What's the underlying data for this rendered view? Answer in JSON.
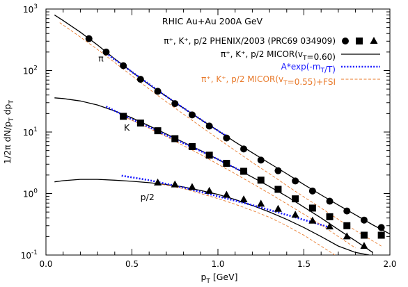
{
  "chart_data": {
    "type": "line",
    "title": "RHIC Au+Au 200A GeV",
    "xlabel": "p_T [GeV]",
    "ylabel": "1/2π dN/p_T dp_T",
    "xlim": [
      0,
      2.0
    ],
    "ylim": [
      0.1,
      1000
    ],
    "yscale": "log",
    "grid": false,
    "legend_placement": "top-right",
    "x_ticks": [
      "0.0",
      "0.5",
      "1.0",
      "1.5",
      "2.0"
    ],
    "y_ticks": [
      {
        "base": "10",
        "exp": "-1"
      },
      {
        "base": "10",
        "exp": "0"
      },
      {
        "base": "10",
        "exp": "1"
      },
      {
        "base": "10",
        "exp": "2"
      },
      {
        "base": "10",
        "exp": "3"
      }
    ],
    "annotations": [
      {
        "text": "π",
        "x": 0.32,
        "y": 140
      },
      {
        "text": "K",
        "x": 0.47,
        "y": 10.5
      },
      {
        "text": "p/2",
        "x": 0.59,
        "y": 0.78
      }
    ],
    "legend": [
      {
        "label": "π⁺, K⁺, p/2 PHENIX/2003 (PRC69 034909)",
        "color": "#000000",
        "style": "markers"
      },
      {
        "label": "π⁺, K⁺, p/2 MICOR(vT=0.60)",
        "color": "#000000",
        "style": "solid"
      },
      {
        "label": "A*exp(-mT/T)",
        "color": "#1a1aff",
        "style": "dotted"
      },
      {
        "label": "π⁺, K⁺, p/2 MICOR(vT=0.55)+FSI",
        "color": "#e8792a",
        "style": "dashed"
      }
    ],
    "series": [
      {
        "name": "π⁺ PHENIX/2003",
        "kind": "markers",
        "marker": "circle",
        "color": "#000000",
        "x": [
          0.25,
          0.35,
          0.45,
          0.55,
          0.65,
          0.75,
          0.85,
          0.95,
          1.05,
          1.15,
          1.25,
          1.35,
          1.45,
          1.55,
          1.65,
          1.75,
          1.85,
          1.95
        ],
        "y": [
          330,
          200,
          120,
          72,
          46,
          29,
          19,
          12.5,
          8.0,
          5.3,
          3.5,
          2.35,
          1.6,
          1.1,
          0.75,
          0.52,
          0.37,
          0.28
        ]
      },
      {
        "name": "K⁺ PHENIX/2003",
        "kind": "markers",
        "marker": "square",
        "color": "#000000",
        "x": [
          0.45,
          0.55,
          0.65,
          0.75,
          0.85,
          0.95,
          1.05,
          1.15,
          1.25,
          1.35,
          1.45,
          1.55,
          1.65,
          1.75,
          1.85,
          1.95
        ],
        "y": [
          18,
          14,
          10.5,
          7.8,
          5.8,
          4.2,
          3.1,
          2.3,
          1.65,
          1.17,
          0.82,
          0.58,
          0.42,
          0.3,
          0.21,
          0.21
        ]
      },
      {
        "name": "p/2 PHENIX/2003",
        "kind": "markers",
        "marker": "triangle",
        "color": "#000000",
        "x": [
          0.65,
          0.75,
          0.85,
          0.95,
          1.05,
          1.15,
          1.25,
          1.35,
          1.45,
          1.55,
          1.65,
          1.75,
          1.85
        ],
        "y": [
          1.5,
          1.4,
          1.27,
          1.1,
          0.95,
          0.8,
          0.68,
          0.56,
          0.45,
          0.36,
          0.29,
          0.2,
          0.14
        ]
      },
      {
        "name": "π⁺ MICOR(vT=0.60)",
        "kind": "line",
        "dash": "solid",
        "color": "#000000",
        "x": [
          0.05,
          0.1,
          0.2,
          0.3,
          0.4,
          0.5,
          0.6,
          0.7,
          0.8,
          0.9,
          1.0,
          1.1,
          1.2,
          1.3,
          1.4,
          1.5,
          1.6,
          1.7,
          1.8,
          1.9,
          2.0
        ],
        "y": [
          800,
          650,
          420,
          260,
          155,
          95,
          59,
          38,
          24.5,
          16,
          10.5,
          6.9,
          4.6,
          3.1,
          2.1,
          1.4,
          0.95,
          0.65,
          0.45,
          0.31,
          0.22
        ]
      },
      {
        "name": "K⁺ MICOR(vT=0.60)",
        "kind": "line",
        "dash": "solid",
        "color": "#000000",
        "x": [
          0.05,
          0.1,
          0.2,
          0.3,
          0.4,
          0.5,
          0.6,
          0.7,
          0.8,
          0.9,
          1.0,
          1.1,
          1.2,
          1.3,
          1.4,
          1.5,
          1.6,
          1.7,
          1.8,
          1.9
        ],
        "y": [
          36,
          35,
          32,
          27.5,
          22,
          17,
          12.6,
          9.3,
          6.8,
          5.0,
          3.6,
          2.6,
          1.85,
          1.3,
          0.9,
          0.6,
          0.4,
          0.26,
          0.17,
          0.11
        ]
      },
      {
        "name": "p/2 MICOR(vT=0.60)",
        "kind": "line",
        "dash": "solid",
        "color": "#000000",
        "x": [
          0.05,
          0.1,
          0.2,
          0.3,
          0.4,
          0.5,
          0.6,
          0.7,
          0.8,
          0.9,
          1.0,
          1.1,
          1.2,
          1.3,
          1.4,
          1.5,
          1.6,
          1.7,
          1.8,
          1.88
        ],
        "y": [
          1.55,
          1.62,
          1.7,
          1.7,
          1.65,
          1.58,
          1.5,
          1.4,
          1.28,
          1.12,
          0.97,
          0.8,
          0.64,
          0.5,
          0.38,
          0.28,
          0.2,
          0.14,
          0.11,
          0.1
        ]
      },
      {
        "name": "π⁺ A*exp(-mT/T)",
        "kind": "line",
        "dash": "dotted",
        "color": "#1a1aff",
        "x": [
          0.35,
          0.5,
          0.6,
          0.7,
          0.8,
          0.9,
          1.0,
          1.06
        ],
        "y": [
          190,
          95,
          60,
          38,
          24.5,
          16,
          10.5,
          8.3
        ]
      },
      {
        "name": "K⁺ A*exp(-mT/T)",
        "kind": "line",
        "dash": "dotted",
        "color": "#1a1aff",
        "x": [
          0.35,
          0.5,
          0.6,
          0.7,
          0.8,
          0.9,
          1.0,
          1.1,
          1.17
        ],
        "y": [
          26,
          16,
          12,
          8.9,
          6.6,
          4.9,
          3.6,
          2.6,
          2.1
        ]
      },
      {
        "name": "p/2 A*exp(-mT/T)",
        "kind": "line",
        "dash": "dotted",
        "color": "#1a1aff",
        "x": [
          0.44,
          0.6,
          0.8,
          1.0,
          1.2,
          1.4,
          1.6,
          1.65
        ],
        "y": [
          1.95,
          1.65,
          1.25,
          0.9,
          0.65,
          0.45,
          0.31,
          0.28
        ]
      },
      {
        "name": "π⁺ MICOR(vT=0.55)+FSI",
        "kind": "line",
        "dash": "dashed",
        "color": "#e8792a",
        "x": [
          0.08,
          0.2,
          0.3,
          0.4,
          0.5,
          0.6,
          0.7,
          0.8,
          0.9,
          1.0,
          1.1,
          1.2,
          1.3,
          1.4,
          1.5,
          1.6,
          1.7,
          1.8,
          1.9,
          1.95
        ],
        "y": [
          600,
          350,
          220,
          135,
          82,
          50,
          31,
          19.5,
          12.3,
          7.8,
          5.0,
          3.2,
          2.1,
          1.35,
          0.88,
          0.58,
          0.38,
          0.25,
          0.17,
          0.14
        ]
      },
      {
        "name": "K⁺ MICOR(vT=0.55)+FSI",
        "kind": "line",
        "dash": "dashed",
        "color": "#e8792a",
        "x": [
          0.45,
          0.6,
          0.7,
          0.8,
          0.9,
          1.0,
          1.1,
          1.2,
          1.3,
          1.4,
          1.5,
          1.6,
          1.7,
          1.8
        ],
        "y": [
          18,
          11.5,
          8.4,
          6.0,
          4.3,
          3.0,
          2.1,
          1.45,
          1.0,
          0.68,
          0.46,
          0.31,
          0.2,
          0.13
        ]
      },
      {
        "name": "p/2 MICOR(vT=0.55)+FSI",
        "kind": "line",
        "dash": "dashed",
        "color": "#e8792a",
        "x": [
          0.65,
          0.8,
          0.9,
          1.0,
          1.1,
          1.2,
          1.3,
          1.4,
          1.5,
          1.6,
          1.68
        ],
        "y": [
          1.45,
          1.2,
          1.0,
          0.83,
          0.67,
          0.53,
          0.41,
          0.3,
          0.21,
          0.14,
          0.1
        ]
      }
    ]
  }
}
